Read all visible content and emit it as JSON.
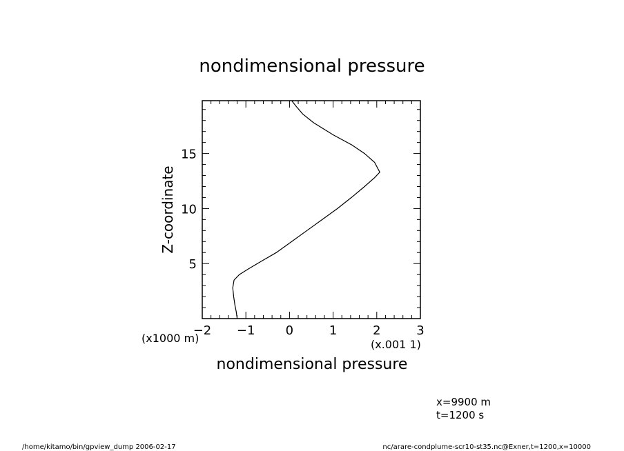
{
  "chart_data": {
    "type": "line",
    "title": "nondimensional pressure",
    "xlabel": "nondimensional pressure",
    "x_unit_note": "(x.001 1)",
    "ylabel": "Z-coordinate",
    "y_unit_note": "(x1000 m)",
    "xlim": [
      -2,
      3
    ],
    "ylim": [
      0,
      19.8
    ],
    "xticks": [
      -2,
      -1,
      0,
      1,
      2,
      3
    ],
    "yticks": [
      5,
      10,
      15
    ],
    "series": [
      {
        "points": [
          [
            -1.2,
            0.0
          ],
          [
            -1.22,
            0.6
          ],
          [
            -1.25,
            1.2
          ],
          [
            -1.28,
            2.0
          ],
          [
            -1.3,
            2.8
          ],
          [
            -1.27,
            3.5
          ],
          [
            -1.15,
            4.0
          ],
          [
            -0.95,
            4.5
          ],
          [
            -0.65,
            5.2
          ],
          [
            -0.3,
            6.0
          ],
          [
            0.05,
            7.0
          ],
          [
            0.4,
            8.0
          ],
          [
            0.75,
            9.0
          ],
          [
            1.1,
            10.0
          ],
          [
            1.42,
            11.0
          ],
          [
            1.72,
            12.0
          ],
          [
            1.95,
            12.8
          ],
          [
            2.07,
            13.3
          ],
          [
            1.95,
            14.2
          ],
          [
            1.72,
            15.0
          ],
          [
            1.42,
            15.8
          ],
          [
            1.0,
            16.7
          ],
          [
            0.55,
            17.8
          ],
          [
            0.3,
            18.6
          ],
          [
            0.15,
            19.3
          ],
          [
            0.05,
            19.8
          ]
        ]
      }
    ]
  },
  "annotations": {
    "position_label": "x=9900  m",
    "time_label": "t=1200  s"
  },
  "footer": {
    "left": "/home/kitamo/bin/gpview_dump   2006-02-17",
    "right": "nc/arare-condplume-scr10-st35.nc@Exner,t=1200,x=10000"
  }
}
